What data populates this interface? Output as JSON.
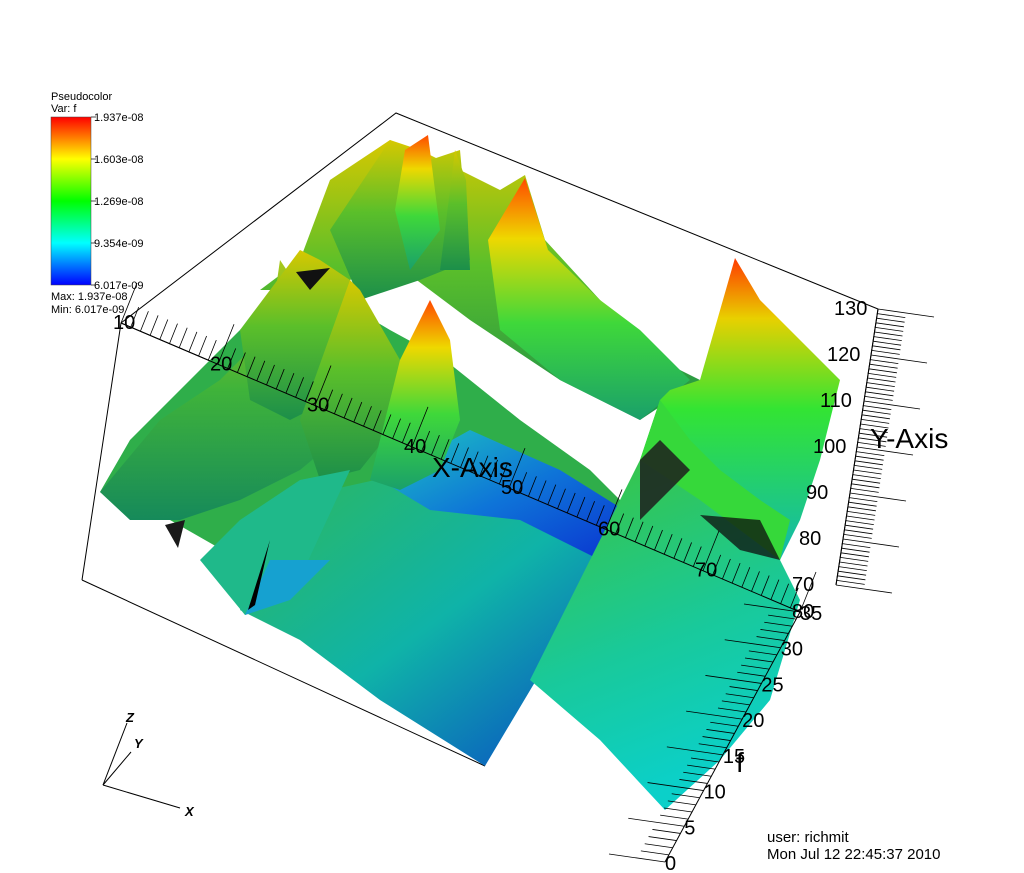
{
  "chart_data": {
    "type": "surface-3d",
    "legend": {
      "plot_type": "Pseudocolor",
      "variable": "Var: f",
      "colormap": "hot-to-cold (blue-cyan-green-yellow-red)",
      "ticks": [
        "1.937e-08",
        "1.603e-08",
        "1.269e-08",
        "9.354e-09",
        "6.017e-09"
      ],
      "max_label": "Max:  1.937e-08",
      "min_label": "Min:  6.017e-09",
      "min": 6.017e-09,
      "max": 1.937e-08,
      "colors": [
        "#0000ff",
        "#00ffff",
        "#00ff00",
        "#ffff00",
        "#ff0000"
      ]
    },
    "x_axis": {
      "title": "X-Axis",
      "tick_labels": [
        "10",
        "20",
        "30",
        "40",
        "50",
        "60",
        "70",
        "80"
      ]
    },
    "y_axis": {
      "title": "Y-Axis",
      "tick_labels": [
        "70",
        "80",
        "90",
        "100",
        "110",
        "120",
        "130"
      ]
    },
    "z_axis": {
      "title": "f",
      "tick_labels": [
        "0",
        "5",
        "10",
        "15",
        "20",
        "25",
        "30",
        "35"
      ]
    },
    "triad": {
      "x": "X",
      "y": "Y",
      "z": "Z"
    }
  },
  "footer": {
    "user": "user: richmit",
    "timestamp": "Mon Jul 12 22:45:37 2010"
  }
}
